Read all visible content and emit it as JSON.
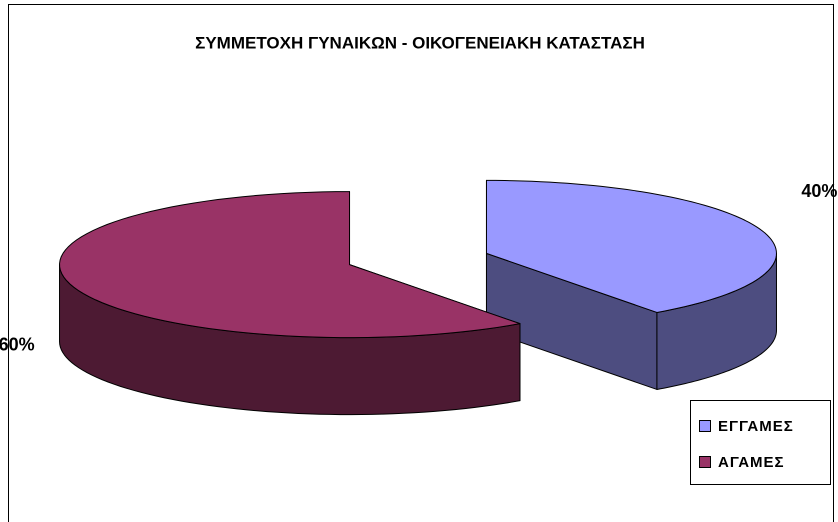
{
  "chart_data": {
    "type": "pie3d",
    "title": "ΣΥΜΜΕΤΟΧΗ ΓΥΝΑΙΚΩΝ - ΟΙΚΟΓΕΝΕΙΑΚΗ ΚΑΤΑΣΤΑΣΗ",
    "categories": [
      "ΕΓΓΑΜΕΣ",
      "ΑΓΑΜΕΣ"
    ],
    "values": [
      40,
      60
    ],
    "value_labels": [
      "40%",
      "60%"
    ],
    "colors": [
      "#9999ff",
      "#993366"
    ],
    "legend": "right"
  }
}
